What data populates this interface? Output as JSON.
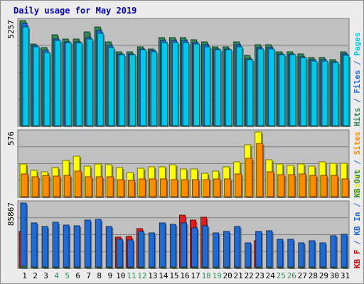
{
  "chart_data": {
    "type": "bar",
    "title": "Daily usage for May 2019",
    "categories": [
      "1",
      "2",
      "3",
      "4",
      "5",
      "6",
      "7",
      "8",
      "9",
      "10",
      "11",
      "12",
      "13",
      "14",
      "15",
      "16",
      "17",
      "18",
      "19",
      "20",
      "21",
      "22",
      "23",
      "24",
      "25",
      "26",
      "27",
      "28",
      "29",
      "30",
      "31"
    ],
    "weekend_color": "#2e8b57",
    "weekend_days": [
      "4",
      "5",
      "11",
      "12",
      "18",
      "19",
      "25",
      "26"
    ],
    "day_label_color": "#000000",
    "panels": [
      {
        "id": "pages-files-hits",
        "max_label": "5257",
        "ymax": 5257,
        "side_labels": [
          {
            "text": "Hits",
            "color": "#2e8b57"
          },
          {
            "text": "Files",
            "color": "#1e6bd6"
          },
          {
            "text": "Pages",
            "color": "#00c8e8"
          }
        ],
        "separator": " / ",
        "series": [
          {
            "name": "Hits",
            "color": "#2e8b57",
            "values": [
              5257,
              4100,
              3900,
              4550,
              4350,
              4350,
              4700,
              4950,
              4200,
              3700,
              3700,
              3950,
              3850,
              4400,
              4400,
              4400,
              4300,
              4200,
              3950,
              3950,
              4200,
              3500,
              4050,
              4050,
              3700,
              3700,
              3600,
              3400,
              3400,
              3300,
              3700
            ]
          },
          {
            "name": "Files",
            "color": "#1e6bd6",
            "values": [
              5100,
              4000,
              3750,
              4350,
              4200,
              4200,
              4400,
              4750,
              4000,
              3600,
              3600,
              3850,
              3750,
              4250,
              4250,
              4250,
              4150,
              4050,
              3850,
              3850,
              4050,
              3350,
              3900,
              3900,
              3600,
              3600,
              3450,
              3300,
              3300,
              3200,
              3600
            ]
          },
          {
            "name": "Pages",
            "color": "#00c8e8",
            "values": [
              4950,
              3950,
              3650,
              4250,
              4150,
              4150,
              4350,
              4600,
              3900,
              3550,
              3550,
              3800,
              3700,
              4150,
              4150,
              4150,
              4100,
              3950,
              3800,
              3800,
              3950,
              3300,
              3850,
              3850,
              3550,
              3550,
              3400,
              3250,
              3250,
              3150,
              3500
            ]
          }
        ]
      },
      {
        "id": "visits-sites",
        "max_label": "576",
        "ymax": 576,
        "side_labels": [
          {
            "text": "Visits",
            "color": "#e6e600"
          },
          {
            "text": "Sites",
            "color": "#ff8c00"
          }
        ],
        "separator": " / ",
        "series": [
          {
            "name": "Visits",
            "color": "#ffff00",
            "values": [
              290,
              235,
              220,
              260,
              320,
              360,
              275,
              290,
              285,
              260,
              215,
              255,
              265,
              265,
              285,
              250,
              245,
              210,
              230,
              265,
              310,
              460,
              576,
              330,
              290,
              280,
              290,
              270,
              310,
              300,
              295
            ]
          },
          {
            "name": "Sites",
            "color": "#ff8c00",
            "values": [
              205,
              180,
              190,
              185,
              190,
              225,
              180,
              180,
              180,
              150,
              145,
              160,
              160,
              160,
              155,
              155,
              155,
              155,
              160,
              160,
              200,
              340,
              475,
              220,
              195,
              195,
              200,
              190,
              190,
              190,
              160
            ]
          }
        ]
      },
      {
        "id": "kbytes",
        "max_label": "85867",
        "ymax": 85867,
        "side_labels": [
          {
            "text": "KB F",
            "color": "#cc0000"
          },
          {
            "text": "KB In",
            "color": "#1e6bd6"
          },
          {
            "text": "KB Out",
            "color": "#2e8b57"
          }
        ],
        "separator": " / ",
        "series": [
          {
            "name": "KB F",
            "color": "#e41a1c",
            "values": [
              48000,
              0,
              0,
              0,
              0,
              0,
              0,
              0,
              0,
              40500,
              41500,
              52000,
              0,
              0,
              0,
              70000,
              63000,
              67000,
              0,
              0,
              0,
              0,
              36000,
              0,
              0,
              0,
              0,
              0,
              0,
              0,
              0
            ]
          },
          {
            "name": "KB In",
            "color": "#1e6bd6",
            "values": [
              85867,
              59000,
              55000,
              60000,
              57000,
              56000,
              63000,
              64000,
              55000,
              38000,
              37000,
              48000,
              46000,
              59000,
              58000,
              59000,
              53000,
              56000,
              46000,
              48000,
              55000,
              33000,
              48000,
              49000,
              38000,
              38000,
              33000,
              36000,
              33000,
              42000,
              44000
            ]
          },
          {
            "name": "KB Out",
            "color": "#2e8b57",
            "values": [
              1500,
              800,
              700,
              800,
              700,
              700,
              800,
              800,
              700,
              600,
              600,
              700,
              600,
              700,
              700,
              700,
              700,
              700,
              600,
              600,
              700,
              500,
              700,
              700,
              600,
              600,
              500,
              500,
              500,
              600,
              600
            ]
          }
        ]
      }
    ]
  }
}
